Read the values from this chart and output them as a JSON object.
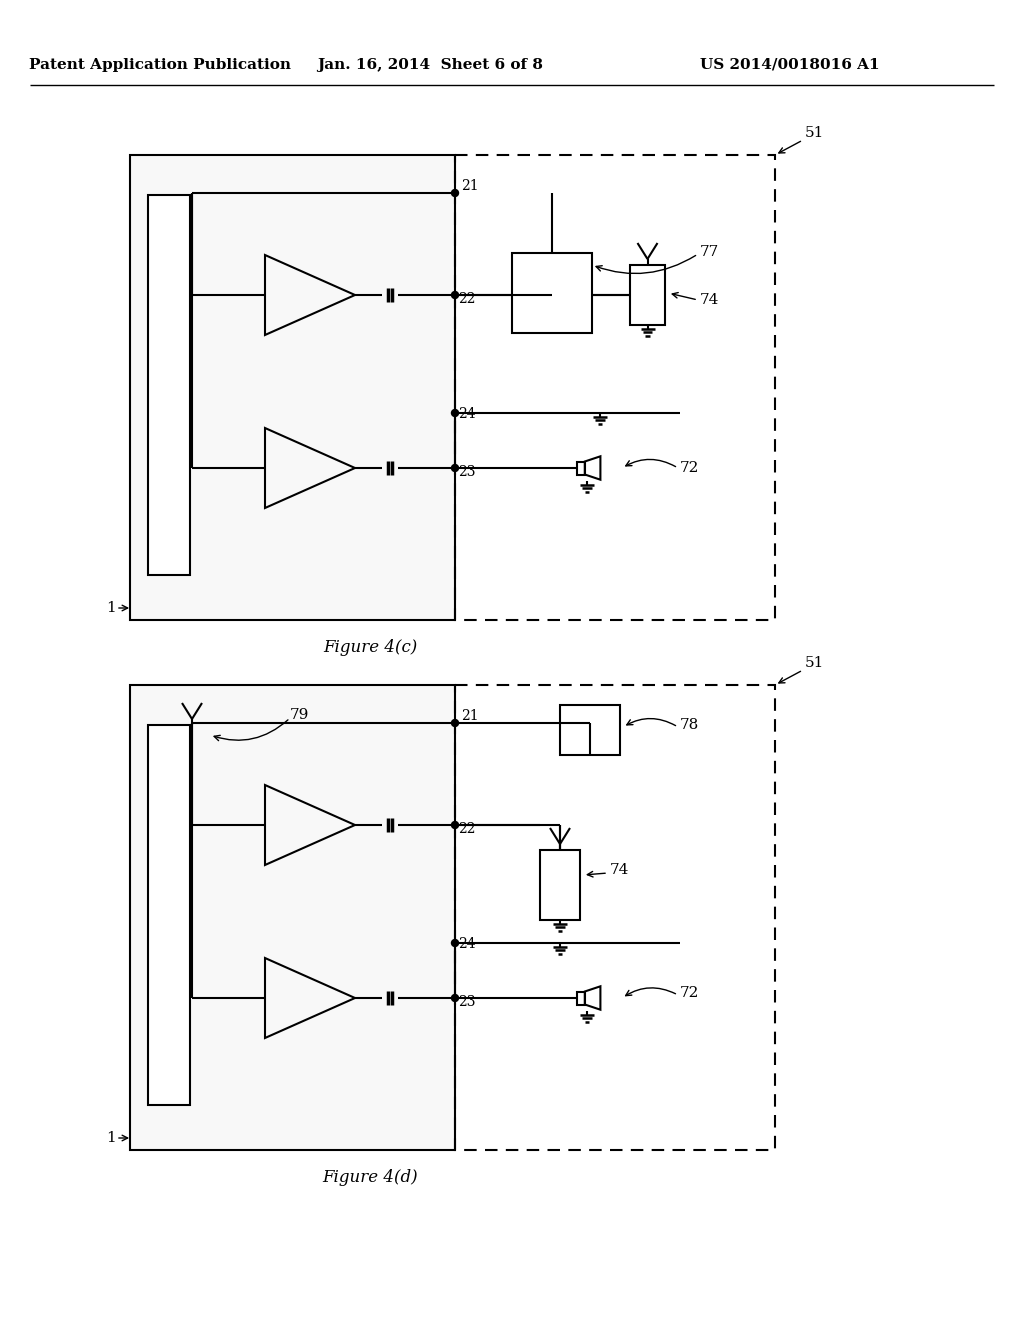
{
  "bg_color": "#ffffff",
  "header_text": "Patent Application Publication",
  "header_date": "Jan. 16, 2014  Sheet 6 of 8",
  "header_patent": "US 2014/0018016 A1",
  "fig_c_label": "Figure 4(c)",
  "fig_d_label": "Figure 4(d)",
  "labels": {
    "1a": "1",
    "51a": "51",
    "21a": "21",
    "22a": "22",
    "23a": "23",
    "24a": "24",
    "72a": "72",
    "74a": "74",
    "77a": "77",
    "1b": "1",
    "51b": "51",
    "21b": "21",
    "22b": "22",
    "23b": "23",
    "24b": "24",
    "72b": "72",
    "74b": "74",
    "78b": "78",
    "79b": "79"
  }
}
